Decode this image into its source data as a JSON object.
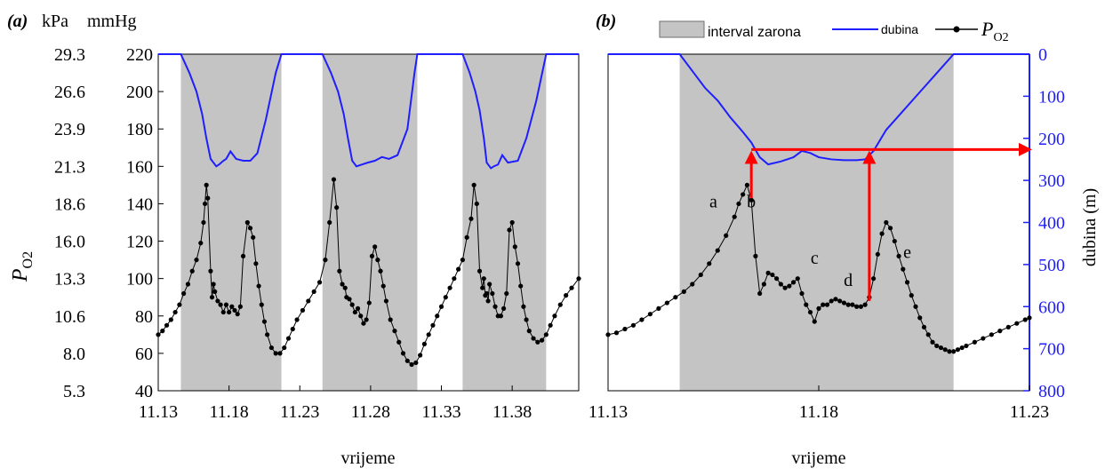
{
  "colors": {
    "dive_interval": "#c4c4c4",
    "depth_line": "#1e1eff",
    "po2_line": "#000000",
    "marker": "#000000",
    "arrow": "#ff0000",
    "depth_axis": "#1e1eff"
  },
  "chart_data": [
    {
      "id": "a",
      "type": "line",
      "panel_label": "(a)",
      "unit_kpa": "kPa",
      "unit_mmhg": "mmHg",
      "xlabel": "vrijeme",
      "ylabel_symbol": "P",
      "ylabel_subscript": "O2",
      "x_ticks": [
        "11.13",
        "11.18",
        "11.23",
        "11.28",
        "11.33",
        "11.38"
      ],
      "x_tick_values": [
        11.13,
        11.18,
        11.23,
        11.28,
        11.33,
        11.38
      ],
      "xlim": [
        11.13,
        11.427
      ],
      "ylim_mmhg": [
        40,
        220
      ],
      "y_ticks_mmhg": [
        "40",
        "60",
        "80",
        "100",
        "120",
        "140",
        "160",
        "180",
        "200",
        "220"
      ],
      "y_ticks_kpa": [
        "5.3",
        "8.0",
        "10.6",
        "13.3",
        "16.0",
        "18.6",
        "21.3",
        "23.9",
        "26.6",
        "29.3"
      ],
      "dive_intervals": [
        [
          11.146,
          11.217
        ],
        [
          11.246,
          11.313
        ],
        [
          11.345,
          11.404
        ]
      ],
      "series": [
        {
          "key": "depth",
          "x": [
            11.13,
            11.146,
            11.152,
            11.157,
            11.161,
            11.164,
            11.167,
            11.171,
            11.173,
            11.176,
            11.178,
            11.181,
            11.185,
            11.19,
            11.195,
            11.2,
            11.206,
            11.213,
            11.217,
            11.246,
            11.252,
            11.257,
            11.261,
            11.264,
            11.267,
            11.27,
            11.274,
            11.278,
            11.283,
            11.288,
            11.293,
            11.299,
            11.306,
            11.311,
            11.313,
            11.345,
            11.35,
            11.354,
            11.357,
            11.36,
            11.362,
            11.365,
            11.367,
            11.37,
            11.373,
            11.377,
            11.384,
            11.39,
            11.397,
            11.404,
            11.427
          ],
          "y": [
            220,
            220,
            210,
            200,
            188,
            175,
            164,
            160,
            161,
            163,
            164,
            168,
            164,
            163,
            163,
            167,
            185,
            210,
            220,
            220,
            210,
            200,
            188,
            175,
            163,
            160,
            161,
            162,
            163,
            165,
            164,
            166,
            180,
            210,
            220,
            220,
            210,
            200,
            190,
            175,
            162,
            159,
            160,
            161,
            166,
            162,
            163,
            175,
            195,
            220,
            220
          ]
        },
        {
          "key": "po2",
          "x": [
            11.13,
            11.133,
            11.136,
            11.139,
            11.142,
            11.145,
            11.148,
            11.151,
            11.154,
            11.157,
            11.16,
            11.162,
            11.163,
            11.164,
            11.165,
            11.167,
            11.168,
            11.169,
            11.17,
            11.172,
            11.174,
            11.176,
            11.178,
            11.18,
            11.182,
            11.184,
            11.186,
            11.188,
            11.19,
            11.193,
            11.195,
            11.197,
            11.199,
            11.201,
            11.203,
            11.205,
            11.207,
            11.21,
            11.213,
            11.216,
            11.219,
            11.222,
            11.225,
            11.228,
            11.232,
            11.236,
            11.24,
            11.244,
            11.248,
            11.251,
            11.254,
            11.256,
            11.258,
            11.26,
            11.262,
            11.263,
            11.265,
            11.267,
            11.269,
            11.271,
            11.273,
            11.275,
            11.277,
            11.279,
            11.281,
            11.283,
            11.285,
            11.287,
            11.289,
            11.291,
            11.294,
            11.297,
            11.3,
            11.303,
            11.306,
            11.309,
            11.312,
            11.315,
            11.318,
            11.321,
            11.324,
            11.327,
            11.33,
            11.333,
            11.336,
            11.339,
            11.342,
            11.345,
            11.348,
            11.351,
            11.353,
            11.355,
            11.357,
            11.359,
            11.36,
            11.361,
            11.362,
            11.363,
            11.364,
            11.366,
            11.368,
            11.37,
            11.372,
            11.374,
            11.376,
            11.378,
            11.38,
            11.382,
            11.384,
            11.386,
            11.388,
            11.39,
            11.392,
            11.395,
            11.398,
            11.401,
            11.404,
            11.407,
            11.41,
            11.414,
            11.418,
            11.422,
            11.427
          ],
          "y": [
            70,
            72,
            75,
            78,
            82,
            86,
            92,
            97,
            104,
            110,
            119,
            130,
            140,
            150,
            143,
            104,
            90,
            97,
            93,
            88,
            86,
            82,
            86,
            82,
            85,
            83,
            81,
            85,
            112,
            130,
            127,
            122,
            108,
            96,
            86,
            77,
            70,
            63,
            60,
            60,
            63,
            68,
            73,
            78,
            83,
            88,
            93,
            98,
            110,
            130,
            153,
            138,
            104,
            97,
            95,
            90,
            89,
            86,
            82,
            84,
            80,
            76,
            78,
            87,
            112,
            117,
            110,
            104,
            96,
            88,
            78,
            72,
            66,
            60,
            56,
            54,
            55,
            59,
            65,
            70,
            75,
            80,
            85,
            90,
            95,
            100,
            105,
            110,
            122,
            132,
            150,
            140,
            104,
            95,
            100,
            91,
            92,
            88,
            97,
            92,
            85,
            80,
            80,
            84,
            92,
            126,
            130,
            117,
            108,
            96,
            85,
            78,
            72,
            68,
            66,
            67,
            70,
            75,
            80,
            86,
            91,
            95,
            100
          ]
        }
      ]
    },
    {
      "id": "b",
      "type": "line",
      "panel_label": "(b)",
      "xlabel": "vrijeme",
      "ylabel_right": "dubina (m)",
      "x_ticks": [
        "11.13",
        "11.18",
        "11.23"
      ],
      "x_tick_values": [
        11.13,
        11.18,
        11.23
      ],
      "xlim": [
        11.13,
        11.23
      ],
      "ylim_po2_mmhg": [
        40,
        220
      ],
      "ylim_depth_m": [
        0,
        800
      ],
      "y_ticks_depth": [
        "0",
        "100",
        "200",
        "300",
        "400",
        "500",
        "600",
        "700",
        "800"
      ],
      "dive_intervals": [
        [
          11.147,
          11.212
        ]
      ],
      "legend": {
        "dive_interval": "interval zarona",
        "depth": "dubina",
        "po2_symbol": "P",
        "po2_subscript": "O2"
      },
      "annotations": [
        {
          "text": "a",
          "x": 11.155,
          "y_mmhg": 138
        },
        {
          "text": "b",
          "x": 11.164,
          "y_mmhg": 138
        },
        {
          "text": "c",
          "x": 11.179,
          "y_mmhg": 108
        },
        {
          "text": "d",
          "x": 11.187,
          "y_mmhg": 96
        },
        {
          "text": "e",
          "x": 11.201,
          "y_mmhg": 111
        }
      ],
      "arrows": [
        {
          "from": {
            "x": 11.164,
            "y_mmhg": 143
          },
          "to": {
            "x": 11.164,
            "y_mmhg": 167
          }
        },
        {
          "from": {
            "x": 11.192,
            "y_mmhg": 88
          },
          "to": {
            "x": 11.192,
            "y_mmhg": 167
          }
        },
        {
          "from": {
            "x": 11.164,
            "y_mmhg": 169
          },
          "to": {
            "x": 11.23,
            "y_mmhg": 169
          }
        }
      ],
      "series": [
        {
          "key": "depth",
          "x": [
            11.13,
            11.147,
            11.15,
            11.153,
            11.156,
            11.159,
            11.162,
            11.164,
            11.166,
            11.168,
            11.171,
            11.174,
            11.176,
            11.178,
            11.18,
            11.183,
            11.186,
            11.189,
            11.191,
            11.193,
            11.196,
            11.2,
            11.204,
            11.208,
            11.212,
            11.23
          ],
          "y": [
            0,
            0,
            40,
            80,
            110,
            150,
            185,
            210,
            245,
            262,
            255,
            245,
            230,
            235,
            245,
            250,
            252,
            252,
            250,
            230,
            180,
            135,
            90,
            45,
            0,
            0
          ]
        },
        {
          "key": "po2",
          "x": [
            11.13,
            11.132,
            11.134,
            11.136,
            11.138,
            11.14,
            11.142,
            11.144,
            11.146,
            11.148,
            11.15,
            11.152,
            11.154,
            11.156,
            11.158,
            11.16,
            11.161,
            11.162,
            11.163,
            11.164,
            11.165,
            11.166,
            11.167,
            11.168,
            11.169,
            11.17,
            11.171,
            11.172,
            11.173,
            11.174,
            11.175,
            11.176,
            11.177,
            11.178,
            11.179,
            11.18,
            11.181,
            11.182,
            11.183,
            11.184,
            11.185,
            11.186,
            11.187,
            11.188,
            11.189,
            11.19,
            11.191,
            11.192,
            11.193,
            11.194,
            11.195,
            11.196,
            11.197,
            11.198,
            11.199,
            11.2,
            11.201,
            11.202,
            11.203,
            11.204,
            11.205,
            11.206,
            11.207,
            11.208,
            11.209,
            11.21,
            11.211,
            11.212,
            11.213,
            11.214,
            11.215,
            11.217,
            11.219,
            11.221,
            11.223,
            11.225,
            11.227,
            11.229,
            11.23
          ],
          "y": [
            70,
            71,
            73,
            75,
            78,
            81,
            84,
            87,
            90,
            93,
            97,
            102,
            108,
            115,
            123,
            133,
            140,
            145,
            150,
            142,
            112,
            92,
            97,
            103,
            102,
            100,
            97,
            95,
            96,
            98,
            100,
            92,
            86,
            82,
            77,
            84,
            86,
            86,
            88,
            89,
            88,
            87,
            86,
            86,
            85,
            85,
            86,
            90,
            100,
            113,
            124,
            130,
            127,
            120,
            112,
            105,
            98,
            91,
            85,
            79,
            74,
            70,
            66,
            64,
            63,
            62,
            61,
            61,
            62,
            63,
            64,
            66,
            68,
            70,
            72,
            74,
            76,
            78,
            79
          ]
        }
      ]
    }
  ]
}
